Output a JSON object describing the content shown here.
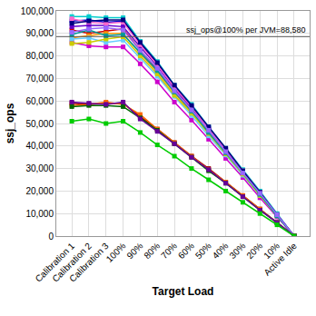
{
  "chart_data": {
    "type": "line",
    "marker": "square",
    "x_label": "Target Load",
    "y_label": "ssj_ops",
    "categories": [
      "Calibration 1",
      "Calibration 2",
      "Calibration 3",
      "100%",
      "90%",
      "80%",
      "70%",
      "60%",
      "50%",
      "40%",
      "30%",
      "20%",
      "10%",
      "Active Idle"
    ],
    "ylim": [
      0,
      100000
    ],
    "yticks": [
      0,
      {
        "value": 10000,
        "label": "10,000"
      },
      {
        "value": 20000,
        "label": "20,000"
      },
      {
        "value": 30000,
        "label": "30,000"
      },
      {
        "value": 40000,
        "label": "40,000"
      },
      {
        "value": 50000,
        "label": "50,000"
      },
      {
        "value": 60000,
        "label": "60,000"
      },
      {
        "value": 70000,
        "label": "70,000"
      },
      {
        "value": 80000,
        "label": "80,000"
      },
      {
        "value": 90000,
        "label": "90,000"
      },
      {
        "value": 100000,
        "label": "100,000"
      }
    ],
    "grid": true,
    "annotations": [
      {
        "text": "ssj_ops@100% per JVM=88,580",
        "y": 88580
      }
    ],
    "series": [
      {
        "color": "#0000cc",
        "values": [
          95500,
          96000,
          95000,
          95500,
          85500,
          76500,
          66000,
          57500,
          48000,
          38500,
          29000,
          19500,
          9500,
          0
        ]
      },
      {
        "color": "#00cccc",
        "values": [
          97500,
          97500,
          97000,
          97000,
          86500,
          77500,
          67000,
          58500,
          48500,
          39000,
          29500,
          20000,
          10000,
          0
        ]
      },
      {
        "color": "#cc0000",
        "values": [
          91500,
          90000,
          91000,
          92000,
          82500,
          74000,
          64500,
          56000,
          46500,
          37500,
          28000,
          19000,
          9500,
          0
        ]
      },
      {
        "color": "#ff9900",
        "values": [
          88000,
          89000,
          90000,
          90000,
          81000,
          73000,
          63500,
          55000,
          46000,
          37000,
          27500,
          18500,
          9000,
          0
        ]
      },
      {
        "color": "#cc00cc",
        "values": [
          86000,
          84500,
          84000,
          84000,
          76500,
          68500,
          59500,
          51500,
          43000,
          34500,
          26000,
          17000,
          8500,
          0
        ]
      },
      {
        "color": "#6600cc",
        "values": [
          93000,
          93500,
          93500,
          93000,
          84000,
          75500,
          65500,
          57000,
          47500,
          38000,
          28500,
          19000,
          9500,
          0
        ]
      },
      {
        "color": "#ff66cc",
        "values": [
          96500,
          95000,
          94500,
          95000,
          85000,
          76000,
          66000,
          57500,
          47500,
          38500,
          29000,
          19500,
          9500,
          0
        ]
      },
      {
        "color": "#66ccff",
        "values": [
          87500,
          88000,
          86000,
          87000,
          79000,
          71000,
          62000,
          53500,
          44500,
          36000,
          27000,
          18000,
          9000,
          0
        ]
      },
      {
        "color": "#cccc00",
        "values": [
          85500,
          86000,
          87500,
          88500,
          80000,
          72000,
          62500,
          54500,
          45500,
          36500,
          27500,
          18000,
          9000,
          0
        ]
      },
      {
        "color": "#000080",
        "values": [
          94500,
          95500,
          96000,
          96000,
          86000,
          77000,
          67000,
          58000,
          48500,
          39000,
          29000,
          19500,
          9500,
          0
        ]
      },
      {
        "color": "#009999",
        "values": [
          89500,
          91500,
          89000,
          89500,
          81500,
          73500,
          64000,
          55500,
          46000,
          37000,
          28000,
          18500,
          9000,
          0
        ]
      },
      {
        "color": "#9966ff",
        "values": [
          90500,
          92000,
          92500,
          91500,
          82500,
          74500,
          64500,
          56000,
          47000,
          37500,
          28000,
          19000,
          9500,
          0
        ]
      },
      {
        "color": "#990000",
        "values": [
          59000,
          58500,
          59000,
          59000,
          53000,
          47500,
          41500,
          35500,
          30000,
          24000,
          18000,
          12000,
          6000,
          0
        ]
      },
      {
        "color": "#ff6600",
        "values": [
          58000,
          58500,
          59500,
          58500,
          54000,
          47500,
          41500,
          35500,
          29500,
          24000,
          18000,
          12000,
          6000,
          0
        ]
      },
      {
        "color": "#006600",
        "values": [
          57500,
          58000,
          58000,
          57500,
          52500,
          47000,
          41000,
          35000,
          29000,
          23500,
          17500,
          11500,
          6000,
          0
        ]
      },
      {
        "color": "#660099",
        "values": [
          59500,
          59000,
          58500,
          59500,
          52000,
          46500,
          41000,
          35000,
          29500,
          23500,
          17500,
          11500,
          6000,
          0
        ]
      },
      {
        "color": "#00cc00",
        "values": [
          51000,
          52000,
          50000,
          51000,
          46000,
          40500,
          35500,
          30000,
          25000,
          20000,
          15000,
          10000,
          5000,
          0
        ]
      }
    ]
  }
}
